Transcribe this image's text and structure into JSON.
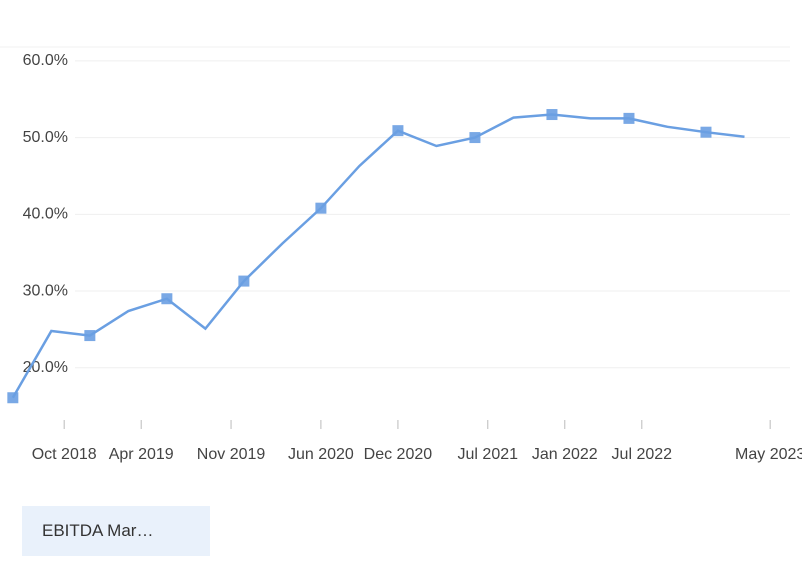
{
  "chart_data": {
    "type": "line",
    "x": [
      "2018-06",
      "2018-09",
      "2018-12",
      "2019-03",
      "2019-06",
      "2019-09",
      "2019-12",
      "2020-03",
      "2020-06",
      "2020-09",
      "2020-12",
      "2021-03",
      "2021-06",
      "2021-09",
      "2021-12",
      "2022-03",
      "2022-06",
      "2022-09",
      "2022-12",
      "2023-03"
    ],
    "series": [
      {
        "name": "EBITDA Mar…",
        "color": "#6a9fe2",
        "values": [
          16.1,
          24.8,
          24.2,
          27.4,
          29.0,
          25.1,
          31.3,
          36.2,
          40.8,
          46.3,
          50.9,
          48.9,
          50.0,
          52.6,
          53.0,
          52.5,
          52.5,
          51.4,
          50.7,
          50.1
        ]
      }
    ],
    "marker_step": 2,
    "xlim": [
      "2018-05",
      "2023-06"
    ],
    "xticks": [
      {
        "value": "2018-10",
        "label": "Oct 2018"
      },
      {
        "value": "2019-04",
        "label": "Apr 2019"
      },
      {
        "value": "2019-11",
        "label": "Nov 2019"
      },
      {
        "value": "2020-06",
        "label": "Jun 2020"
      },
      {
        "value": "2020-12",
        "label": "Dec 2020"
      },
      {
        "value": "2021-07",
        "label": "Jul 2021"
      },
      {
        "value": "2022-01",
        "label": "Jan 2022"
      },
      {
        "value": "2022-07",
        "label": "Jul 2022"
      },
      {
        "value": "2023-05",
        "label": "May 2023"
      }
    ],
    "ylim": [
      13.2,
      61.8
    ],
    "yticks": [
      {
        "value": 20,
        "label": "20.0%"
      },
      {
        "value": 30,
        "label": "30.0%"
      },
      {
        "value": 40,
        "label": "40.0%"
      },
      {
        "value": 50,
        "label": "50.0%"
      },
      {
        "value": 60,
        "label": "60.0%"
      }
    ],
    "grid": true
  }
}
